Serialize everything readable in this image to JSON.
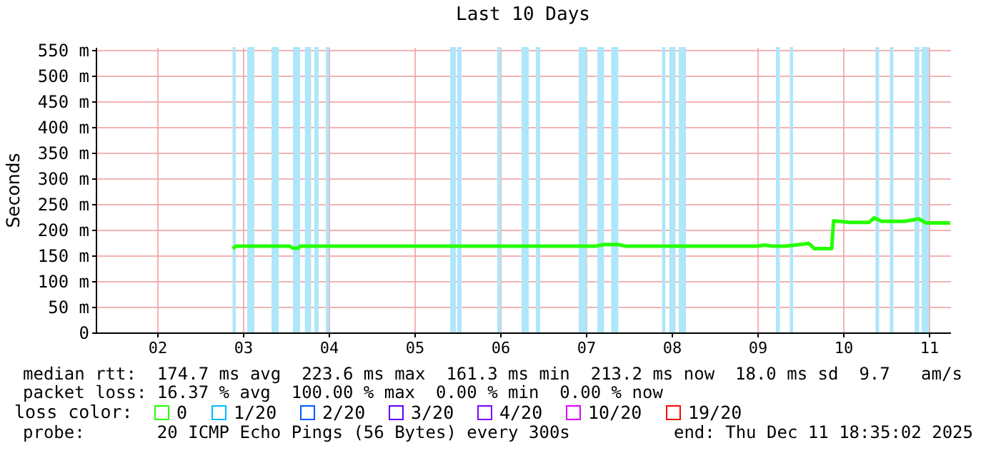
{
  "chart_data": {
    "type": "line",
    "title": "Last 10 Days",
    "ylabel": "Seconds",
    "legend_title": "loss color:",
    "legend": "bottom left",
    "grid": true,
    "xlim": [
      "2025-12-01T18:48",
      "2025-12-11T18:00"
    ],
    "xticks": [
      {
        "value": "2025-12-02T12:00",
        "label": "02"
      },
      {
        "value": "2025-12-03T12:00",
        "label": "03"
      },
      {
        "value": "2025-12-04T12:00",
        "label": "04"
      },
      {
        "value": "2025-12-05T12:00",
        "label": "05"
      },
      {
        "value": "2025-12-06T12:00",
        "label": "06"
      },
      {
        "value": "2025-12-07T12:00",
        "label": "07"
      },
      {
        "value": "2025-12-08T12:00",
        "label": "08"
      },
      {
        "value": "2025-12-09T12:00",
        "label": "09"
      },
      {
        "value": "2025-12-10T12:00",
        "label": "10"
      },
      {
        "value": "2025-12-11T12:00",
        "label": "11"
      }
    ],
    "ylim": [
      0,
      555
    ],
    "yticks": [
      0,
      {
        "value": 50,
        "label": "50 m"
      },
      {
        "value": 100,
        "label": "100 m"
      },
      {
        "value": 150,
        "label": "150 m"
      },
      {
        "value": 200,
        "label": "200 m"
      },
      {
        "value": 250,
        "label": "250 m"
      },
      {
        "value": 300,
        "label": "300 m"
      },
      {
        "value": 350,
        "label": "350 m"
      },
      {
        "value": 400,
        "label": "400 m"
      },
      {
        "value": 450,
        "label": "450 m"
      },
      {
        "value": 500,
        "label": "500 m"
      },
      {
        "value": 550,
        "label": "550 m"
      }
    ],
    "series": [
      {
        "name": "0",
        "color": "#26ff00",
        "x": [
          "2025-12-03T09:10",
          "2025-12-03T10:00",
          "2025-12-04T01:00",
          "2025-12-04T02:00",
          "2025-12-04T03:30",
          "2025-12-04T04:00",
          "2025-12-07T15:00",
          "2025-12-07T17:00",
          "2025-12-07T21:00",
          "2025-12-07T23:00",
          "2025-12-09T12:00",
          "2025-12-09T14:00",
          "2025-12-09T16:00",
          "2025-12-09T20:00",
          "2025-12-10T02:24",
          "2025-12-10T04:00",
          "2025-12-10T08:48",
          "2025-12-10T09:20",
          "2025-12-10T14:00",
          "2025-12-10T19:12",
          "2025-12-10T20:40",
          "2025-12-10T22:48",
          "2025-12-11T05:12",
          "2025-12-11T09:12",
          "2025-12-11T11:12",
          "2025-12-11T18:00"
        ],
        "values": [
          163,
          168,
          168,
          164,
          164,
          168,
          168,
          171,
          171,
          168,
          168,
          170,
          168,
          168,
          173,
          163,
          163,
          217,
          214,
          214,
          223,
          216,
          216,
          221,
          213,
          213
        ]
      },
      {
        "name": "1/20",
        "color": "#00b8ff"
      },
      {
        "name": "2/20",
        "color": "#0059ff"
      },
      {
        "name": "3/20",
        "color": "#5e00ff"
      },
      {
        "name": "4/20",
        "color": "#7e00ff"
      },
      {
        "name": "10/20",
        "color": "#dd00ff"
      },
      {
        "name": "19/20",
        "color": "#ff0000"
      }
    ],
    "bands": [
      {
        "axis": "x",
        "from": "2025-12-03T09:06",
        "to": "2025-12-03T10:00",
        "color": "#aee6fa"
      },
      {
        "axis": "x",
        "from": "2025-12-03T13:12",
        "to": "2025-12-03T15:12",
        "color": "#aee6fa"
      },
      {
        "axis": "x",
        "from": "2025-12-03T20:00",
        "to": "2025-12-03T22:00",
        "color": "#aee6fa"
      },
      {
        "axis": "x",
        "from": "2025-12-04T02:00",
        "to": "2025-12-04T04:00",
        "color": "#aee6fa"
      },
      {
        "axis": "x",
        "from": "2025-12-04T05:20",
        "to": "2025-12-04T07:05",
        "color": "#aee6fa"
      },
      {
        "axis": "x",
        "from": "2025-12-04T08:00",
        "to": "2025-12-04T09:12",
        "color": "#aee6fa"
      },
      {
        "axis": "x",
        "from": "2025-12-04T11:12",
        "to": "2025-12-04T12:05",
        "color": "#aee6fa"
      },
      {
        "axis": "x",
        "from": "2025-12-05T22:00",
        "to": "2025-12-05T23:36",
        "color": "#aee6fa"
      },
      {
        "axis": "x",
        "from": "2025-12-06T00:00",
        "to": "2025-12-06T01:12",
        "color": "#aee6fa"
      },
      {
        "axis": "x",
        "from": "2025-12-06T11:12",
        "to": "2025-12-06T12:12",
        "color": "#aee6fa"
      },
      {
        "axis": "x",
        "from": "2025-12-06T18:00",
        "to": "2025-12-06T20:00",
        "color": "#aee6fa"
      },
      {
        "axis": "x",
        "from": "2025-12-06T22:00",
        "to": "2025-12-06T23:12",
        "color": "#aee6fa"
      },
      {
        "axis": "x",
        "from": "2025-12-07T10:00",
        "to": "2025-12-07T12:17",
        "color": "#aee6fa"
      },
      {
        "axis": "x",
        "from": "2025-12-07T15:12",
        "to": "2025-12-07T17:05",
        "color": "#aee6fa"
      },
      {
        "axis": "x",
        "from": "2025-12-07T19:05",
        "to": "2025-12-07T21:05",
        "color": "#aee6fa"
      },
      {
        "axis": "x",
        "from": "2025-12-08T09:20",
        "to": "2025-12-08T10:15",
        "color": "#aee6fa"
      },
      {
        "axis": "x",
        "from": "2025-12-08T11:20",
        "to": "2025-12-08T13:05",
        "color": "#aee6fa"
      },
      {
        "axis": "x",
        "from": "2025-12-08T14:00",
        "to": "2025-12-08T16:00",
        "color": "#aee6fa"
      },
      {
        "axis": "x",
        "from": "2025-12-09T17:12",
        "to": "2025-12-09T18:17",
        "color": "#aee6fa"
      },
      {
        "axis": "x",
        "from": "2025-12-09T21:05",
        "to": "2025-12-09T22:00",
        "color": "#aee6fa"
      },
      {
        "axis": "x",
        "from": "2025-12-10T21:05",
        "to": "2025-12-10T22:05",
        "color": "#aee6fa"
      },
      {
        "axis": "x",
        "from": "2025-12-11T01:05",
        "to": "2025-12-11T02:05",
        "color": "#aee6fa"
      },
      {
        "axis": "x",
        "from": "2025-12-11T08:00",
        "to": "2025-12-11T09:20",
        "color": "#aee6fa"
      },
      {
        "axis": "x",
        "from": "2025-12-11T10:00",
        "to": "2025-12-11T12:05",
        "color": "#aee6fa"
      }
    ],
    "annotations": [
      "median rtt:  174.7 ms avg  223.6 ms max  161.3 ms min  213.2 ms now  18.0 ms sd  9.7   am/s",
      "packet loss: 16.37 % avg  100.00 % max  0.00 % min  0.00 % now",
      "probe:       20 ICMP Echo Pings (56 Bytes) every 300s",
      "end: Thu Dec 11 18:35:02 2025"
    ]
  }
}
